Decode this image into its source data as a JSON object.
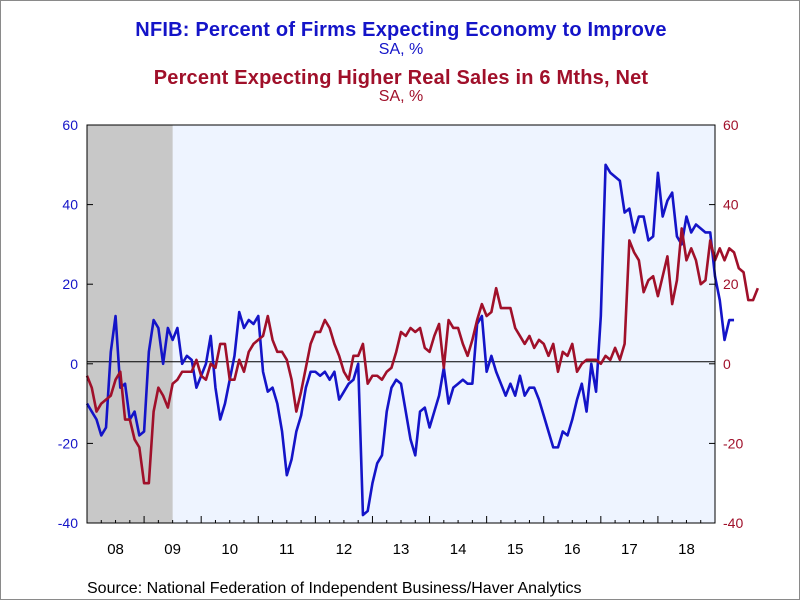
{
  "chart_data": {
    "type": "line",
    "titles": [
      {
        "text": "NFIB: Percent of Firms Expecting Economy to Improve",
        "sub": "SA, %",
        "color": "#1414c8"
      },
      {
        "text": "Percent Expecting Higher Real Sales in 6 Mths, Net",
        "sub": "SA, %",
        "color": "#a0102a"
      }
    ],
    "source": "Source:  National Federation of Independent Business/Haver Analytics",
    "x_axis": {
      "start": 2008.0,
      "end": 2019.0,
      "tick_labels": [
        "08",
        "09",
        "10",
        "11",
        "12",
        "13",
        "14",
        "15",
        "16",
        "17",
        "18"
      ]
    },
    "y_left": {
      "min": -40,
      "max": 60,
      "ticks": [
        -40,
        -20,
        0,
        20,
        40,
        60
      ],
      "color": "#1414c8"
    },
    "y_right": {
      "min": -40,
      "max": 60,
      "ticks": [
        -40,
        -20,
        0,
        20,
        40,
        60
      ],
      "color": "#a0102a"
    },
    "recession": {
      "start": 2008.0,
      "end": 2009.5,
      "color": "#c8c8c8"
    },
    "plot_background": "#eef4ff",
    "series": [
      {
        "name": "NFIB: Percent of Firms Expecting Economy to Improve",
        "axis": "left",
        "color": "#1414c8",
        "start": 2008.0,
        "values": [
          -10,
          -12,
          -14,
          -18,
          -16,
          3,
          12,
          -6,
          -5,
          -14,
          -12,
          -18,
          -17,
          3,
          11,
          9,
          0,
          9,
          6,
          9,
          0,
          2,
          1,
          -6,
          -3,
          0,
          7,
          -6,
          -14,
          -10,
          -4,
          2,
          13,
          9,
          11,
          10,
          12,
          -2,
          -7,
          -6,
          -10,
          -17,
          -28,
          -24,
          -17,
          -13,
          -6,
          -2,
          -2,
          -3,
          -2,
          -4,
          -2,
          -9,
          -7,
          -5,
          -4,
          0,
          -38,
          -37,
          -30,
          -25,
          -23,
          -12,
          -6,
          -4,
          -5,
          -12,
          -19,
          -23,
          -12,
          -11,
          -16,
          -12,
          -8,
          -1,
          -10,
          -6,
          -5,
          -4,
          -5,
          -5,
          10,
          12,
          -2,
          2,
          -2,
          -5,
          -8,
          -5,
          -8,
          -3,
          -8,
          -6,
          -6,
          -9,
          -13,
          -17,
          -21,
          -21,
          -17,
          -18,
          -14,
          -9,
          -5,
          -12,
          0,
          -7,
          12,
          50,
          48,
          47,
          46,
          38,
          39,
          33,
          37,
          37,
          31,
          32,
          48,
          37,
          41,
          43,
          32,
          30,
          37,
          33,
          35,
          34,
          33,
          33,
          22,
          16,
          6,
          11,
          11
        ]
      },
      {
        "name": "Percent Expecting Higher Real Sales in 6 Mths, Net",
        "axis": "right",
        "color": "#a0102a",
        "start": 2008.0,
        "values": [
          -3,
          -6,
          -12,
          -10,
          -9,
          -8,
          -4,
          -2,
          -14,
          -14,
          -19,
          -21,
          -30,
          -30,
          -12,
          -6,
          -8,
          -11,
          -5,
          -4,
          -2,
          -2,
          -2,
          1,
          -3,
          -4,
          0,
          -1,
          5,
          5,
          -4,
          -4,
          1,
          -2,
          3,
          5,
          6,
          7,
          12,
          6,
          3,
          3,
          1,
          -4,
          -12,
          -7,
          -1,
          5,
          8,
          8,
          11,
          9,
          5,
          2,
          -2,
          -4,
          2,
          2,
          5,
          -5,
          -3,
          -3,
          -4,
          -2,
          -1,
          3,
          8,
          7,
          9,
          8,
          9,
          4,
          3,
          7,
          10,
          -1,
          11,
          9,
          9,
          5,
          2,
          6,
          11,
          15,
          12,
          13,
          19,
          14,
          14,
          14,
          9,
          7,
          5,
          7,
          4,
          6,
          5,
          2,
          5,
          -2,
          3,
          2,
          5,
          -2,
          0,
          1,
          1,
          1,
          0,
          2,
          1,
          4,
          1,
          5,
          31,
          28,
          26,
          18,
          21,
          22,
          17,
          22,
          27,
          15,
          21,
          34,
          26,
          29,
          26,
          20,
          21,
          31,
          26,
          29,
          26,
          29,
          28,
          24,
          23,
          16,
          16,
          19
        ]
      }
    ]
  }
}
